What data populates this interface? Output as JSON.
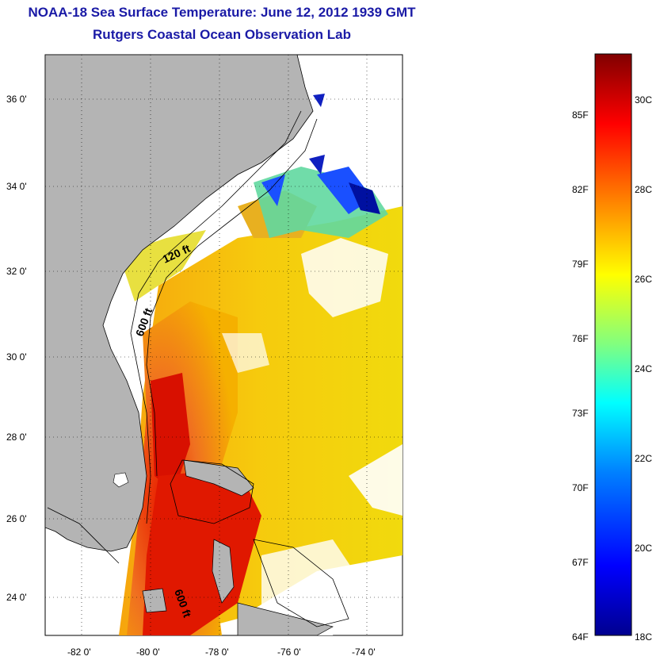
{
  "title": "NOAA-18 Sea Surface Temperature:  June 12, 2012 1939 GMT",
  "subtitle": "Rutgers Coastal Ocean Observation Lab",
  "map": {
    "lat_ticks": [
      "36 0'",
      "34 0'",
      "32 0'",
      "30 0'",
      "28 0'",
      "26 0'",
      "24 0'"
    ],
    "lon_ticks": [
      "-82 0'",
      "-80 0'",
      "-78 0'",
      "-76 0'",
      "-74 0'"
    ],
    "depth_labels": [
      "120 ft",
      "600 ft",
      "600 ft"
    ],
    "land_color": "#b4b4b4",
    "cloud_color": "#ffffff"
  },
  "colorbar": {
    "f_ticks": [
      "85F",
      "82F",
      "79F",
      "76F",
      "73F",
      "70F",
      "67F",
      "64F"
    ],
    "c_ticks": [
      "30C",
      "28C",
      "26C",
      "24C",
      "22C",
      "20C",
      "18C"
    ],
    "colormap": [
      "#00008f",
      "#0000ff",
      "#0080ff",
      "#00ffff",
      "#80ff80",
      "#ffff00",
      "#ff8000",
      "#ff0000",
      "#800000"
    ]
  }
}
